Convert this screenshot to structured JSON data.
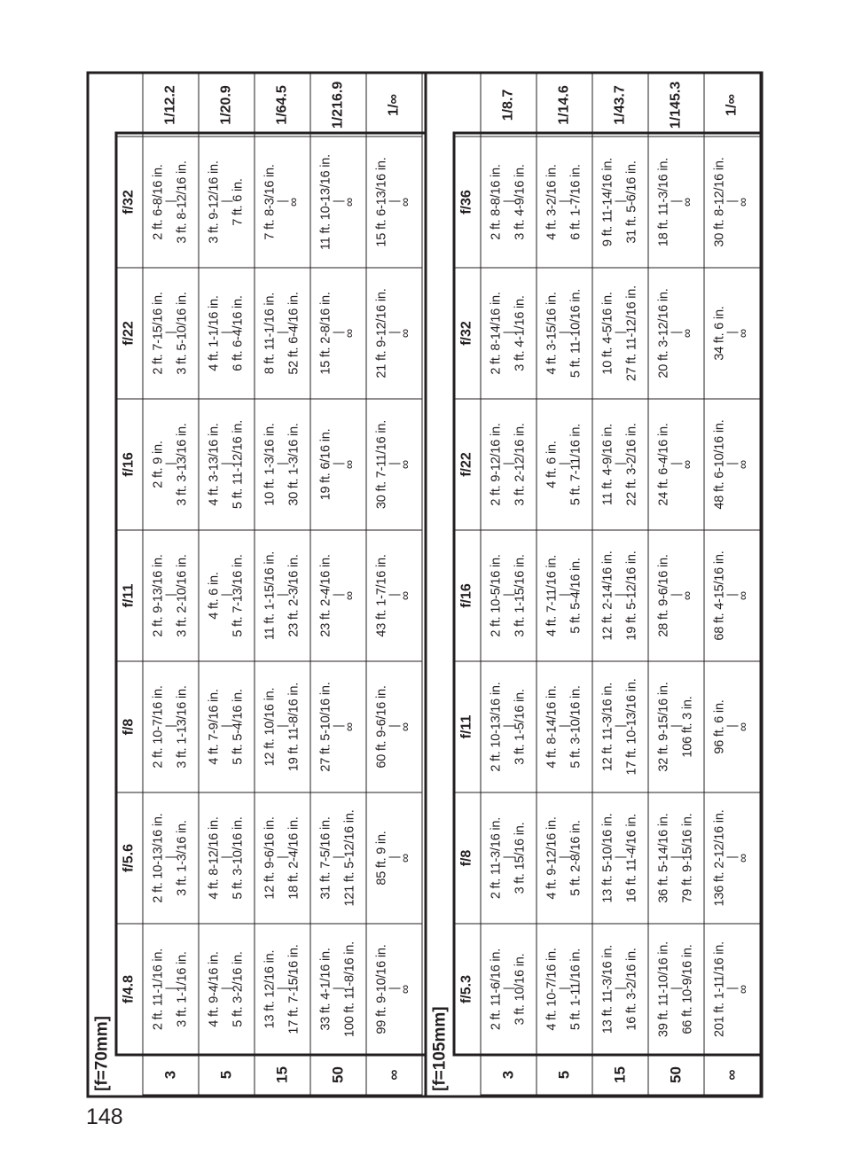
{
  "page_number": "148",
  "tables": [
    {
      "title": "[f=70mm]",
      "apertures": [
        "f/4.8",
        "f/5.6",
        "f/8",
        "f/11",
        "f/16",
        "f/22",
        "f/32"
      ],
      "rows": [
        {
          "distance": "3",
          "exposure": "1/12.2",
          "cells": [
            [
              "2 ft. 11-1/16 in.",
              "3 ft. 1-1/16 in."
            ],
            [
              "2 ft. 10-13/16 in.",
              "3 ft. 1-3/16 in."
            ],
            [
              "2 ft. 10-7/16 in.",
              "3 ft. 1-13/16 in."
            ],
            [
              "2 ft. 9-13/16 in.",
              "3 ft. 2-10/16 in."
            ],
            [
              "2 ft. 9 in.",
              "3 ft. 3-13/16 in."
            ],
            [
              "2 ft. 7-15/16 in.",
              "3 ft. 5-10/16 in."
            ],
            [
              "2 ft. 6-8/16 in.",
              "3 ft. 8-12/16 in."
            ]
          ]
        },
        {
          "distance": "5",
          "exposure": "1/20.9",
          "cells": [
            [
              "4 ft. 9-4/16 in.",
              "5 ft. 3-2/16 in."
            ],
            [
              "4 ft. 8-12/16 in.",
              "5 ft. 3-10/16 in."
            ],
            [
              "4 ft. 7-9/16 in.",
              "5 ft. 5-4/16 in."
            ],
            [
              "4 ft. 6 in.",
              "5 ft. 7-13/16 in."
            ],
            [
              "4 ft. 3-13/16 in.",
              "5 ft. 11-12/16 in."
            ],
            [
              "4 ft. 1-1/16 in.",
              "6 ft. 6-4/16 in."
            ],
            [
              "3 ft. 9-12/16 in.",
              "7 ft. 6 in."
            ]
          ]
        },
        {
          "distance": "15",
          "exposure": "1/64.5",
          "cells": [
            [
              "13 ft. 12/16 in.",
              "17 ft. 7-15/16 in."
            ],
            [
              "12 ft. 9-6/16 in.",
              "18 ft. 2-4/16 in."
            ],
            [
              "12 ft. 10/16 in.",
              "19 ft. 11-8/16 in."
            ],
            [
              "11 ft. 1-15/16 in.",
              "23 ft. 2-3/16 in."
            ],
            [
              "10 ft. 1-3/16 in.",
              "30 ft. 1-3/16 in."
            ],
            [
              "8 ft. 11-1/16 in.",
              "52 ft. 6-4/16 in."
            ],
            [
              "7 ft. 8-3/16 in.",
              "∞"
            ]
          ]
        },
        {
          "distance": "50",
          "exposure": "1/216.9",
          "cells": [
            [
              "33 ft. 4-1/16 in.",
              "100 ft. 11-8/16 in."
            ],
            [
              "31 ft. 7-5/16 in.",
              "121 ft. 5-12/16 in."
            ],
            [
              "27 ft. 5-10/16 in.",
              "∞"
            ],
            [
              "23 ft. 2-4/16 in.",
              "∞"
            ],
            [
              "19 ft. 6/16 in.",
              "∞"
            ],
            [
              "15 ft. 2-8/16 in.",
              "∞"
            ],
            [
              "11 ft. 10-13/16 in.",
              "∞"
            ]
          ]
        },
        {
          "distance": "∞",
          "exposure": "1/∞",
          "cells": [
            [
              "99 ft. 9-10/16 in.",
              "∞"
            ],
            [
              "85 ft. 9 in.",
              "∞"
            ],
            [
              "60 ft. 9-6/16 in.",
              "∞"
            ],
            [
              "43 ft. 1-7/16 in.",
              "∞"
            ],
            [
              "30 ft. 7-11/16 in.",
              "∞"
            ],
            [
              "21 ft. 9-12/16 in.",
              "∞"
            ],
            [
              "15 ft. 6-13/16 in.",
              "∞"
            ]
          ]
        }
      ]
    },
    {
      "title": "[f=105mm]",
      "apertures": [
        "f/5.3",
        "f/8",
        "f/11",
        "f/16",
        "f/22",
        "f/32",
        "f/36"
      ],
      "rows": [
        {
          "distance": "3",
          "exposure": "1/8.7",
          "cells": [
            [
              "2 ft. 11-6/16 in.",
              "3 ft. 10/16 in."
            ],
            [
              "2 ft. 11-3/16 in.",
              "3 ft. 15/16 in."
            ],
            [
              "2 ft. 10-13/16 in.",
              "3 ft. 1-5/16 in."
            ],
            [
              "2 ft. 10-5/16 in.",
              "3 ft. 1-15/16 in."
            ],
            [
              "2 ft. 9-12/16 in.",
              "3 ft. 2-12/16 in."
            ],
            [
              "2 ft. 8-14/16 in.",
              "3 ft. 4-1/16 in."
            ],
            [
              "2 ft. 8-8/16 in.",
              "3 ft. 4-9/16 in."
            ]
          ]
        },
        {
          "distance": "5",
          "exposure": "1/14.6",
          "cells": [
            [
              "4 ft. 10-7/16 in.",
              "5 ft. 1-11/16 in."
            ],
            [
              "4 ft. 9-12/16 in.",
              "5 ft. 2-8/16 in."
            ],
            [
              "4 ft. 8-14/16 in.",
              "5 ft. 3-10/16 in."
            ],
            [
              "4 ft. 7-11/16 in.",
              "5 ft. 5-4/16 in."
            ],
            [
              "4 ft. 6 in.",
              "5 ft. 7-11/16 in."
            ],
            [
              "4 ft. 3-15/16 in.",
              "5 ft. 11-10/16 in."
            ],
            [
              "4 ft. 3-2/16 in.",
              "6 ft. 1-7/16 in."
            ]
          ]
        },
        {
          "distance": "15",
          "exposure": "1/43.7",
          "cells": [
            [
              "13 ft. 11-3/16 in.",
              "16 ft. 3-2/16 in."
            ],
            [
              "13 ft. 5-10/16 in.",
              "16 ft. 11-4/16 in."
            ],
            [
              "12 ft. 11-3/16 in.",
              "17 ft. 10-13/16 in."
            ],
            [
              "12 ft. 2-14/16 in.",
              "19 ft. 5-12/16 in."
            ],
            [
              "11 ft. 4-9/16 in.",
              "22 ft. 3-2/16 in."
            ],
            [
              "10 ft. 4-5/16 in.",
              "27 ft. 11-12/16 in."
            ],
            [
              "9 ft. 11-14/16 in.",
              "31 ft. 5-6/16 in."
            ]
          ]
        },
        {
          "distance": "50",
          "exposure": "1/145.3",
          "cells": [
            [
              "39 ft. 11-10/16 in.",
              "66 ft. 10-9/16 in."
            ],
            [
              "36 ft. 5-14/16 in.",
              "79 ft. 9-15/16 in."
            ],
            [
              "32 ft. 9-15/16 in.",
              "106 ft. 3 in."
            ],
            [
              "28 ft. 9-6/16 in.",
              "∞"
            ],
            [
              "24 ft. 6-4/16 in.",
              "∞"
            ],
            [
              "20 ft. 3-12/16 in.",
              "∞"
            ],
            [
              "18 ft. 11-3/16 in.",
              "∞"
            ]
          ]
        },
        {
          "distance": "∞",
          "exposure": "1/∞",
          "cells": [
            [
              "201 ft. 1-11/16 in.",
              "∞"
            ],
            [
              "136 ft. 2-12/16 in.",
              "∞"
            ],
            [
              "96 ft. 6 in.",
              "∞"
            ],
            [
              "68 ft. 4-15/16 in.",
              "∞"
            ],
            [
              "48 ft. 6-10/16 in.",
              "∞"
            ],
            [
              "34 ft. 6 in.",
              "∞"
            ],
            [
              "30 ft. 8-12/16 in.",
              "∞"
            ]
          ]
        }
      ]
    }
  ]
}
